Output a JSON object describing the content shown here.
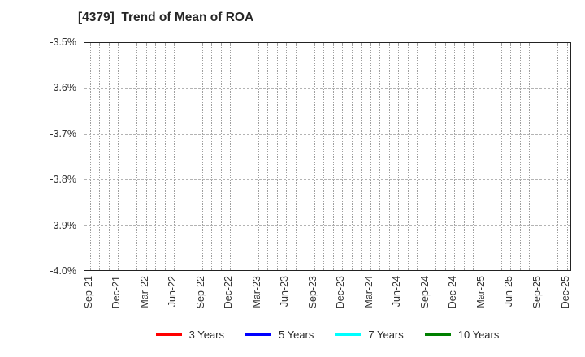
{
  "figure": {
    "title": "[4379]  Trend of Mean of ROA"
  },
  "chart_data": {
    "type": "line",
    "title": "[4379]  Trend of Mean of ROA",
    "x_tick_labels": [
      "Sep-21",
      "Dec-21",
      "Mar-22",
      "Jun-22",
      "Sep-22",
      "Dec-22",
      "Mar-23",
      "Jun-23",
      "Sep-23",
      "Dec-23",
      "Mar-24",
      "Jun-24",
      "Sep-24",
      "Dec-24",
      "Mar-25",
      "Jun-25",
      "Sep-25",
      "Dec-25"
    ],
    "y_tick_labels": [
      "-3.5%",
      "-3.6%",
      "-3.7%",
      "-3.8%",
      "-3.9%",
      "-4.0%"
    ],
    "ylim": [
      -4.0,
      -3.5
    ],
    "xlabel": "",
    "ylabel": "",
    "grid": true,
    "vertical_grid_interval": "monthly",
    "horizontal_grid_interval": 0.1,
    "legend_position": "bottom-center",
    "series": [
      {
        "name": "3 Years",
        "color": "#ff0000",
        "values": []
      },
      {
        "name": "5 Years",
        "color": "#0000ff",
        "values": []
      },
      {
        "name": "7 Years",
        "color": "#00ffff",
        "values": []
      },
      {
        "name": "10 Years",
        "color": "#008000",
        "values": []
      }
    ],
    "note": "plot area is empty - no series lines are drawn"
  }
}
